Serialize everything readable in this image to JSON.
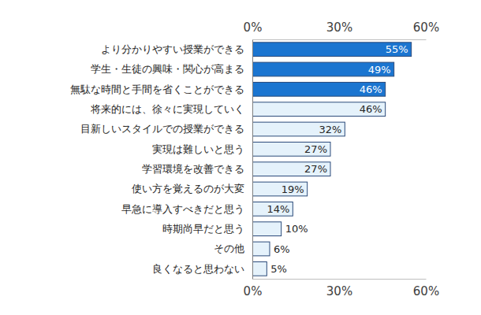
{
  "chart_data": {
    "type": "bar",
    "orientation": "horizontal",
    "categories": [
      "より分かりやすい授業ができる",
      "学生・生徒の興味・関心が高まる",
      "無駄な時間と手間を省くことができる",
      "将来的には、徐々に実現していく",
      "目新しいスタイルでの授業ができる",
      "実現は難しいと思う",
      "学習環境を改善できる",
      "使い方を覚えるのが大変",
      "早急に導入すべきだと思う",
      "時期尚早だと思う",
      "その他",
      "良くなると思わない"
    ],
    "values": [
      55,
      49,
      46,
      46,
      32,
      27,
      27,
      19,
      14,
      10,
      6,
      5
    ],
    "value_labels": [
      "55%",
      "49%",
      "46%",
      "46%",
      "32%",
      "27%",
      "27%",
      "19%",
      "14%",
      "10%",
      "6%",
      "5%"
    ],
    "colors": [
      "#1b75d0",
      "#1b75d0",
      "#1b75d0",
      "#e5f2fb",
      "#e5f2fb",
      "#e5f2fb",
      "#e5f2fb",
      "#e5f2fb",
      "#e5f2fb",
      "#e5f2fb",
      "#e5f2fb",
      "#e5f2fb"
    ],
    "xlim": [
      0,
      60
    ],
    "xticks": [
      {
        "value": 0,
        "label": "0%"
      },
      {
        "value": 30,
        "label": "30%"
      },
      {
        "value": 60,
        "label": "60%"
      }
    ],
    "grid": false,
    "data_labels": true
  }
}
